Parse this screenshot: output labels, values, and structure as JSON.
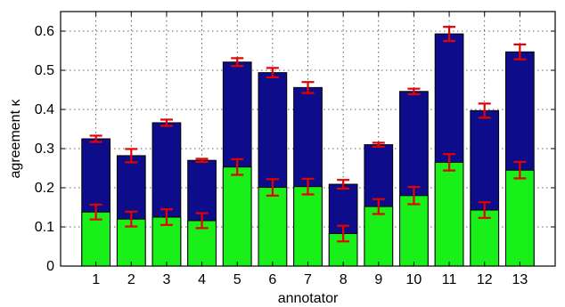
{
  "chart_data": {
    "type": "bar",
    "title": "",
    "xlabel": "annotator",
    "ylabel": "agreement κ",
    "ylim": [
      0,
      0.65
    ],
    "yticks": [
      0,
      0.1,
      0.2,
      0.3,
      0.4,
      0.5,
      0.6
    ],
    "ytick_labels": [
      "0",
      "0.1",
      "0.2",
      "0.3",
      "0.4",
      "0.5",
      "0.6"
    ],
    "grid": true,
    "legend": "none",
    "categories": [
      "1",
      "2",
      "3",
      "4",
      "5",
      "6",
      "7",
      "8",
      "9",
      "10",
      "11",
      "12",
      "13"
    ],
    "series": [
      {
        "color": "#0d0d8c",
        "values": [
          0.325,
          0.282,
          0.366,
          0.27,
          0.521,
          0.494,
          0.456,
          0.209,
          0.31,
          0.446,
          0.593,
          0.397,
          0.547
        ],
        "error": [
          0.008,
          0.017,
          0.008,
          0.004,
          0.01,
          0.012,
          0.014,
          0.011,
          0.005,
          0.007,
          0.018,
          0.018,
          0.019
        ]
      },
      {
        "color": "#19f019",
        "values": [
          0.138,
          0.12,
          0.125,
          0.116,
          0.253,
          0.201,
          0.203,
          0.083,
          0.152,
          0.18,
          0.265,
          0.143,
          0.245
        ],
        "error": [
          0.019,
          0.019,
          0.02,
          0.019,
          0.02,
          0.021,
          0.02,
          0.02,
          0.019,
          0.022,
          0.021,
          0.02,
          0.021
        ]
      }
    ],
    "error_bar_color": "#e60000"
  }
}
